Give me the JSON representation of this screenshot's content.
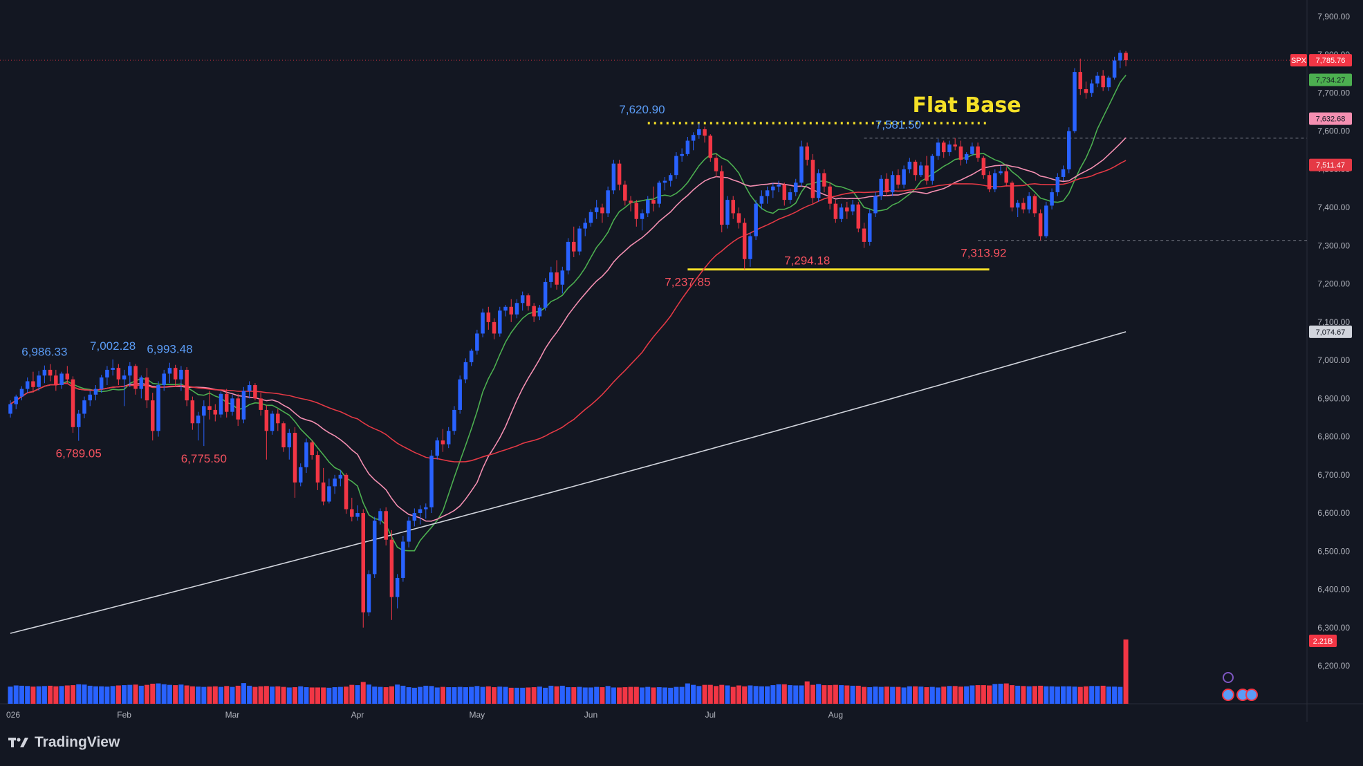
{
  "colors": {
    "background": "#131722",
    "up": "#2962ff",
    "down": "#f23645",
    "ma_green": "#4caf50",
    "ma_pink": "#f48fb1",
    "ma_red": "#e53945",
    "ma_white": "#d1d4dc",
    "flat_base": "#f5e027",
    "axis_text": "#b2b5be",
    "low_label": "#f7525f",
    "high_label": "#5b9cf6"
  },
  "branding": {
    "name": "TradingView",
    "icon": "tradingview-logo-icon"
  },
  "chart_data": {
    "type": "candlestick",
    "symbol": "SPX",
    "ylim": [
      6150,
      7950
    ],
    "ytick_labels": [
      "7,900.00",
      "7,800.00",
      "7,700.00",
      "7,600.00",
      "7,500.00",
      "7,400.00",
      "7,300.00",
      "7,200.00",
      "7,100.00",
      "7,000.00",
      "6,900.00",
      "6,800.00",
      "6,700.00",
      "6,600.00",
      "6,500.00",
      "6,400.00",
      "6,300.00",
      "6,200.00"
    ],
    "ytick_values": [
      7900,
      7800,
      7700,
      7600,
      7500,
      7400,
      7300,
      7200,
      7100,
      7000,
      6900,
      6800,
      6700,
      6600,
      6500,
      6400,
      6300,
      6200
    ],
    "xtick_labels": [
      "026",
      "Feb",
      "Mar",
      "Apr",
      "May",
      "Jun",
      "Jul",
      "Aug"
    ],
    "xtick_bar_index": [
      0,
      20,
      39,
      61,
      82,
      102,
      123,
      145
    ],
    "bars": [
      [
        6860,
        6895,
        6850,
        6885
      ],
      [
        6885,
        6910,
        6872,
        6905
      ],
      [
        6905,
        6932,
        6895,
        6925
      ],
      [
        6925,
        6955,
        6915,
        6945
      ],
      [
        6945,
        6970,
        6915,
        6930
      ],
      [
        6930,
        6972,
        6920,
        6960
      ],
      [
        6960,
        6986.33,
        6940,
        6975
      ],
      [
        6975,
        6990,
        6945,
        6960
      ],
      [
        6960,
        6975,
        6920,
        6935
      ],
      [
        6935,
        6970,
        6925,
        6965
      ],
      [
        6965,
        6985,
        6940,
        6950
      ],
      [
        6950,
        6958,
        6810,
        6825
      ],
      [
        6825,
        6870,
        6789.05,
        6860
      ],
      [
        6860,
        6905,
        6848,
        6895
      ],
      [
        6895,
        6920,
        6880,
        6910
      ],
      [
        6910,
        6935,
        6895,
        6925
      ],
      [
        6925,
        6962,
        6915,
        6955
      ],
      [
        6955,
        6985,
        6935,
        6975
      ],
      [
        6975,
        7002.28,
        6960,
        6980
      ],
      [
        6980,
        6990,
        6935,
        6950
      ],
      [
        6950,
        6975,
        6880,
        6960
      ],
      [
        6960,
        6995,
        6930,
        6985
      ],
      [
        6985,
        6990,
        6910,
        6925
      ],
      [
        6925,
        6960,
        6900,
        6955
      ],
      [
        6955,
        6980,
        6875,
        6895
      ],
      [
        6895,
        6915,
        6790,
        6815
      ],
      [
        6815,
        6945,
        6800,
        6935
      ],
      [
        6935,
        6975,
        6920,
        6965
      ],
      [
        6965,
        6993.48,
        6940,
        6980
      ],
      [
        6980,
        6988,
        6930,
        6950
      ],
      [
        6950,
        6985,
        6920,
        6975
      ],
      [
        6975,
        6982,
        6880,
        6895
      ],
      [
        6895,
        6905,
        6818,
        6835
      ],
      [
        6835,
        6865,
        6790,
        6855
      ],
      [
        6855,
        6895,
        6775.5,
        6880
      ],
      [
        6880,
        6920,
        6845,
        6870
      ],
      [
        6870,
        6885,
        6840,
        6858
      ],
      [
        6858,
        6918,
        6850,
        6912
      ],
      [
        6912,
        6925,
        6850,
        6865
      ],
      [
        6865,
        6910,
        6855,
        6900
      ],
      [
        6900,
        6912,
        6828,
        6845
      ],
      [
        6845,
        6930,
        6835,
        6920
      ],
      [
        6920,
        6945,
        6900,
        6935
      ],
      [
        6935,
        6940,
        6895,
        6900
      ],
      [
        6900,
        6915,
        6855,
        6870
      ],
      [
        6870,
        6882,
        6740,
        6815
      ],
      [
        6815,
        6868,
        6805,
        6860
      ],
      [
        6860,
        6872,
        6815,
        6835
      ],
      [
        6835,
        6840,
        6760,
        6772
      ],
      [
        6772,
        6820,
        6740,
        6810
      ],
      [
        6810,
        6825,
        6640,
        6680
      ],
      [
        6680,
        6730,
        6670,
        6720
      ],
      [
        6720,
        6795,
        6705,
        6785
      ],
      [
        6785,
        6790,
        6740,
        6752
      ],
      [
        6752,
        6762,
        6660,
        6680
      ],
      [
        6680,
        6718,
        6620,
        6630
      ],
      [
        6630,
        6690,
        6625,
        6670
      ],
      [
        6670,
        6700,
        6650,
        6690
      ],
      [
        6690,
        6712,
        6670,
        6700
      ],
      [
        6700,
        6705,
        6598,
        6610
      ],
      [
        6610,
        6640,
        6578,
        6590
      ],
      [
        6590,
        6620,
        6580,
        6600
      ],
      [
        6600,
        6610,
        6300,
        6340
      ],
      [
        6340,
        6450,
        6330,
        6440
      ],
      [
        6440,
        6590,
        6430,
        6580
      ],
      [
        6580,
        6612,
        6570,
        6605
      ],
      [
        6605,
        6615,
        6515,
        6530
      ],
      [
        6530,
        6555,
        6320,
        6380
      ],
      [
        6380,
        6440,
        6350,
        6430
      ],
      [
        6430,
        6540,
        6420,
        6525
      ],
      [
        6525,
        6590,
        6510,
        6580
      ],
      [
        6580,
        6612,
        6565,
        6600
      ],
      [
        6600,
        6620,
        6570,
        6610
      ],
      [
        6610,
        6625,
        6585,
        6615
      ],
      [
        6615,
        6765,
        6600,
        6750
      ],
      [
        6750,
        6798,
        6740,
        6790
      ],
      [
        6790,
        6820,
        6760,
        6780
      ],
      [
        6780,
        6825,
        6770,
        6815
      ],
      [
        6815,
        6880,
        6805,
        6870
      ],
      [
        6870,
        6960,
        6860,
        6950
      ],
      [
        6950,
        7005,
        6940,
        6995
      ],
      [
        6995,
        7030,
        6985,
        7025
      ],
      [
        7025,
        7080,
        7015,
        7070
      ],
      [
        7070,
        7135,
        7060,
        7125
      ],
      [
        7125,
        7140,
        7080,
        7100
      ],
      [
        7100,
        7110,
        7055,
        7070
      ],
      [
        7070,
        7140,
        7062,
        7130
      ],
      [
        7130,
        7145,
        7115,
        7140
      ],
      [
        7140,
        7160,
        7100,
        7120
      ],
      [
        7120,
        7160,
        7110,
        7150
      ],
      [
        7150,
        7180,
        7130,
        7170
      ],
      [
        7170,
        7175,
        7130,
        7142
      ],
      [
        7142,
        7150,
        7100,
        7115
      ],
      [
        7115,
        7145,
        7105,
        7138
      ],
      [
        7138,
        7215,
        7130,
        7205
      ],
      [
        7205,
        7245,
        7190,
        7230
      ],
      [
        7230,
        7262,
        7185,
        7198
      ],
      [
        7198,
        7245,
        7175,
        7235
      ],
      [
        7235,
        7320,
        7225,
        7310
      ],
      [
        7310,
        7350,
        7270,
        7285
      ],
      [
        7285,
        7352,
        7275,
        7345
      ],
      [
        7345,
        7372,
        7325,
        7360
      ],
      [
        7360,
        7395,
        7350,
        7388
      ],
      [
        7388,
        7420,
        7370,
        7400
      ],
      [
        7400,
        7410,
        7360,
        7385
      ],
      [
        7385,
        7455,
        7375,
        7445
      ],
      [
        7445,
        7525,
        7435,
        7515
      ],
      [
        7515,
        7525,
        7445,
        7460
      ],
      [
        7460,
        7470,
        7405,
        7418
      ],
      [
        7418,
        7430,
        7390,
        7412
      ],
      [
        7412,
        7420,
        7350,
        7370
      ],
      [
        7370,
        7395,
        7340,
        7385
      ],
      [
        7385,
        7430,
        7375,
        7420
      ],
      [
        7420,
        7455,
        7390,
        7410
      ],
      [
        7410,
        7470,
        7400,
        7465
      ],
      [
        7465,
        7480,
        7445,
        7470
      ],
      [
        7470,
        7490,
        7455,
        7485
      ],
      [
        7485,
        7545,
        7475,
        7535
      ],
      [
        7535,
        7555,
        7520,
        7540
      ],
      [
        7540,
        7585,
        7535,
        7575
      ],
      [
        7575,
        7597,
        7550,
        7590
      ],
      [
        7590,
        7620.9,
        7580,
        7605
      ],
      [
        7605,
        7612,
        7570,
        7588
      ],
      [
        7588,
        7592,
        7520,
        7530
      ],
      [
        7530,
        7540,
        7480,
        7495
      ],
      [
        7495,
        7510,
        7335,
        7355
      ],
      [
        7355,
        7430,
        7345,
        7420
      ],
      [
        7420,
        7430,
        7370,
        7385
      ],
      [
        7385,
        7400,
        7345,
        7360
      ],
      [
        7360,
        7372,
        7237.85,
        7265
      ],
      [
        7265,
        7335,
        7245,
        7325
      ],
      [
        7325,
        7420,
        7315,
        7410
      ],
      [
        7410,
        7445,
        7395,
        7430
      ],
      [
        7430,
        7455,
        7410,
        7445
      ],
      [
        7445,
        7465,
        7425,
        7455
      ],
      [
        7455,
        7470,
        7440,
        7460
      ],
      [
        7460,
        7465,
        7405,
        7420
      ],
      [
        7420,
        7450,
        7410,
        7440
      ],
      [
        7440,
        7475,
        7430,
        7465
      ],
      [
        7465,
        7575,
        7455,
        7560
      ],
      [
        7560,
        7570,
        7510,
        7525
      ],
      [
        7525,
        7540,
        7410,
        7425
      ],
      [
        7425,
        7500,
        7415,
        7490
      ],
      [
        7490,
        7500,
        7440,
        7455
      ],
      [
        7455,
        7465,
        7395,
        7410
      ],
      [
        7410,
        7420,
        7360,
        7370
      ],
      [
        7370,
        7410,
        7362,
        7400
      ],
      [
        7400,
        7415,
        7370,
        7390
      ],
      [
        7390,
        7420,
        7380,
        7408
      ],
      [
        7408,
        7415,
        7335,
        7345
      ],
      [
        7345,
        7360,
        7294.18,
        7310
      ],
      [
        7310,
        7395,
        7300,
        7385
      ],
      [
        7385,
        7440,
        7375,
        7430
      ],
      [
        7430,
        7485,
        7420,
        7475
      ],
      [
        7475,
        7490,
        7430,
        7440
      ],
      [
        7440,
        7495,
        7430,
        7485
      ],
      [
        7485,
        7500,
        7450,
        7460
      ],
      [
        7460,
        7510,
        7450,
        7500
      ],
      [
        7500,
        7530,
        7490,
        7520
      ],
      [
        7520,
        7525,
        7470,
        7485
      ],
      [
        7485,
        7520,
        7480,
        7510
      ],
      [
        7510,
        7535,
        7460,
        7470
      ],
      [
        7470,
        7540,
        7460,
        7535
      ],
      [
        7535,
        7580,
        7525,
        7570
      ],
      [
        7570,
        7575,
        7530,
        7545
      ],
      [
        7545,
        7575,
        7535,
        7565
      ],
      [
        7565,
        7581.5,
        7550,
        7560
      ],
      [
        7560,
        7575,
        7510,
        7525
      ],
      [
        7525,
        7545,
        7515,
        7540
      ],
      [
        7540,
        7570,
        7535,
        7560
      ],
      [
        7560,
        7570,
        7520,
        7530
      ],
      [
        7530,
        7535,
        7475,
        7485
      ],
      [
        7485,
        7495,
        7440,
        7448
      ],
      [
        7448,
        7500,
        7440,
        7490
      ],
      [
        7490,
        7510,
        7485,
        7495
      ],
      [
        7495,
        7505,
        7455,
        7465
      ],
      [
        7465,
        7470,
        7390,
        7400
      ],
      [
        7400,
        7420,
        7375,
        7412
      ],
      [
        7412,
        7425,
        7385,
        7395
      ],
      [
        7395,
        7440,
        7385,
        7430
      ],
      [
        7430,
        7435,
        7375,
        7385
      ],
      [
        7385,
        7395,
        7313.92,
        7325
      ],
      [
        7325,
        7415,
        7320,
        7405
      ],
      [
        7405,
        7450,
        7395,
        7440
      ],
      [
        7440,
        7490,
        7430,
        7480
      ],
      [
        7480,
        7510,
        7470,
        7500
      ],
      [
        7500,
        7610,
        7490,
        7600
      ],
      [
        7600,
        7765,
        7595,
        7755
      ],
      [
        7755,
        7790,
        7695,
        7710
      ],
      [
        7710,
        7730,
        7685,
        7700
      ],
      [
        7700,
        7735,
        7690,
        7725
      ],
      [
        7725,
        7755,
        7715,
        7745
      ],
      [
        7745,
        7760,
        7705,
        7715
      ],
      [
        7715,
        7745,
        7705,
        7740
      ],
      [
        7740,
        7795,
        7735,
        7785
      ],
      [
        7785,
        7812,
        7765,
        7805
      ],
      [
        7805,
        7810,
        7770,
        7785.76
      ]
    ],
    "volume": [
      0.59,
      0.63,
      0.62,
      0.61,
      0.59,
      0.6,
      0.61,
      0.62,
      0.6,
      0.61,
      0.63,
      0.64,
      0.67,
      0.66,
      0.62,
      0.6,
      0.6,
      0.59,
      0.61,
      0.63,
      0.64,
      0.65,
      0.66,
      0.62,
      0.65,
      0.69,
      0.7,
      0.67,
      0.65,
      0.64,
      0.66,
      0.63,
      0.6,
      0.59,
      0.58,
      0.59,
      0.6,
      0.58,
      0.61,
      0.58,
      0.62,
      0.71,
      0.62,
      0.58,
      0.6,
      0.61,
      0.59,
      0.6,
      0.58,
      0.56,
      0.57,
      0.6,
      0.57,
      0.56,
      0.56,
      0.56,
      0.55,
      0.57,
      0.58,
      0.59,
      0.65,
      0.64,
      0.75,
      0.66,
      0.59,
      0.58,
      0.57,
      0.6,
      0.66,
      0.62,
      0.57,
      0.55,
      0.58,
      0.62,
      0.61,
      0.56,
      0.58,
      0.57,
      0.57,
      0.58,
      0.57,
      0.58,
      0.61,
      0.58,
      0.6,
      0.57,
      0.59,
      0.58,
      0.55,
      0.55,
      0.55,
      0.56,
      0.57,
      0.59,
      0.55,
      0.62,
      0.6,
      0.62,
      0.57,
      0.57,
      0.58,
      0.56,
      0.56,
      0.58,
      0.57,
      0.61,
      0.56,
      0.56,
      0.57,
      0.58,
      0.58,
      0.56,
      0.58,
      0.56,
      0.57,
      0.56,
      0.55,
      0.58,
      0.58,
      0.7,
      0.65,
      0.61,
      0.65,
      0.65,
      0.61,
      0.65,
      0.63,
      0.58,
      0.63,
      0.6,
      0.63,
      0.61,
      0.6,
      0.6,
      0.64,
      0.67,
      0.67,
      0.64,
      0.63,
      0.63,
      0.77,
      0.65,
      0.68,
      0.64,
      0.64,
      0.65,
      0.64,
      0.63,
      0.62,
      0.62,
      0.58,
      0.57,
      0.59,
      0.58,
      0.59,
      0.58,
      0.58,
      0.56,
      0.6,
      0.6,
      0.59,
      0.57,
      0.58,
      0.56,
      0.59,
      0.61,
      0.61,
      0.59,
      0.6,
      0.63,
      0.64,
      0.64,
      0.63,
      0.68,
      0.69,
      0.7,
      0.64,
      0.62,
      0.61,
      0.6,
      0.61,
      0.62,
      0.6,
      0.6,
      0.59,
      0.6,
      0.6,
      0.59,
      0.58,
      0.6,
      0.61,
      0.61,
      0.62,
      0.59,
      0.59,
      0.58,
      2.21
    ],
    "volume_unit": "B",
    "last_volume_label": "2.21B",
    "moving_averages": [
      {
        "color": "#4caf50",
        "last_label": "7,734.27",
        "last_value": 7734.27
      },
      {
        "color": "#f48fb1",
        "last_label": "7,632.68",
        "last_value": 7632.68
      },
      {
        "color": "#e53945",
        "last_label": "7,511.47",
        "last_value": 7511.47
      },
      {
        "color": "#d1d4dc",
        "last_label": "7,074.67",
        "last_value": 7074.67
      }
    ],
    "last_price": {
      "label": "7,785.76",
      "value": 7785.76
    },
    "annotations": {
      "highs": [
        {
          "text": "6,986.33",
          "bar": 6,
          "value": 6986.33
        },
        {
          "text": "7,002.28",
          "bar": 18,
          "value": 7002.28
        },
        {
          "text": "6,993.48",
          "bar": 28,
          "value": 6993.48
        },
        {
          "text": "7,620.90",
          "bar": 111,
          "value": 7620.9
        },
        {
          "text": "7,581.50",
          "bar": 156,
          "value": 7581.5
        }
      ],
      "lows": [
        {
          "text": "6,789.05",
          "bar": 12,
          "value": 6789.05
        },
        {
          "text": "6,775.50",
          "bar": 34,
          "value": 6775.5
        },
        {
          "text": "7,237.85",
          "bar": 119,
          "value": 7237.85
        },
        {
          "text": "7,294.18",
          "bar": 140,
          "value": 7294.18
        },
        {
          "text": "7,313.92",
          "bar": 171,
          "value": 7313.92
        }
      ],
      "flat_base_label": "Flat Base",
      "flat_base_level": 7620.9,
      "support_level": 7237.85,
      "dashed_levels": [
        7581.5,
        7313.92
      ]
    }
  }
}
